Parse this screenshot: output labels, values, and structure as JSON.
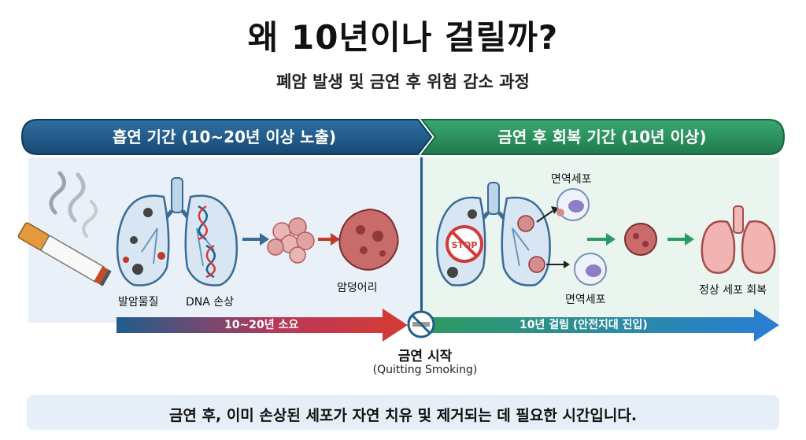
{
  "header": {
    "title": "왜 10년이나 걸릴까?",
    "subtitle": "폐암 발생 및 금연 후 위험 감소 과정"
  },
  "phases": {
    "smoking": "흡연 기간 (10~20년 이상 노출)",
    "recovery": "금연 후 회복 기간 (10년 이상)"
  },
  "labels": {
    "carcinogen": "발암물질",
    "dna_damage": "DNA 손상",
    "tumor": "암덩어리",
    "immune_top": "면역세포",
    "immune_bottom": "면역세포",
    "normal_recovery": "정상 세포 회복",
    "stop_sign": "STOP"
  },
  "timeline": {
    "smoking_duration": "10~20년 소요",
    "recovery_duration": "10년 걸림 (안전지대 진입)",
    "quit_label": "금연 시작",
    "quit_sub": "(Quitting Smoking)"
  },
  "footer": {
    "caption": "금연 후, 이미 손상된 세포가 자연 치유 및 제거되는 데 필요한 시간입니다."
  },
  "colors": {
    "smoking_phase": "#1f5d8c",
    "recovery_phase": "#2e9a63",
    "danger_arrow": "#d23a3a",
    "recovery_arrow": "#2a7fd0"
  }
}
